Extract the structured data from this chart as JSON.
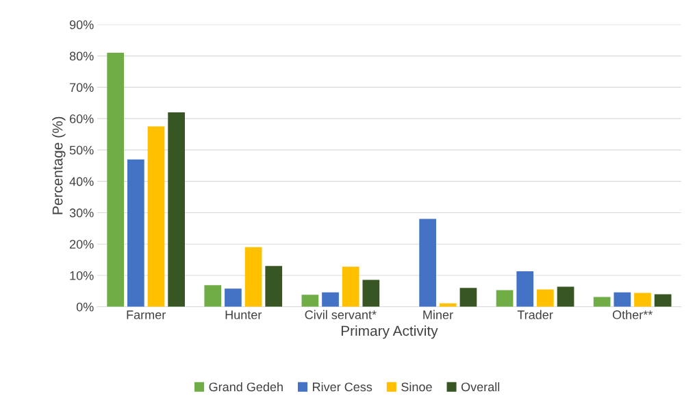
{
  "chart_data": {
    "type": "bar",
    "xlabel": "Primary Activity",
    "ylabel": "Percentage (%)",
    "categories": [
      "Farmer",
      "Hunter",
      "Civil servant*",
      "Miner",
      "Trader",
      "Other**"
    ],
    "series": [
      {
        "name": "Grand Gedeh",
        "color": "#70ad47",
        "values": [
          81,
          6.9,
          3.8,
          0,
          5.3,
          3.1
        ]
      },
      {
        "name": "River Cess",
        "color": "#4472c4",
        "values": [
          47,
          5.8,
          4.6,
          28,
          11.3,
          4.6
        ]
      },
      {
        "name": "Sinoe",
        "color": "#ffc000",
        "values": [
          57.5,
          19,
          12.8,
          1.1,
          5.5,
          4.4
        ]
      },
      {
        "name": "Overall",
        "color": "#375623",
        "values": [
          62,
          13,
          8.6,
          6,
          6.4,
          4
        ]
      }
    ],
    "ylim": [
      0,
      90
    ],
    "yticks": [
      {
        "value": 0,
        "label": "0%"
      },
      {
        "value": 10,
        "label": "10%"
      },
      {
        "value": 20,
        "label": "20%"
      },
      {
        "value": 30,
        "label": "30%"
      },
      {
        "value": 40,
        "label": "40%"
      },
      {
        "value": 50,
        "label": "50%"
      },
      {
        "value": 60,
        "label": "60%"
      },
      {
        "value": 70,
        "label": "70%"
      },
      {
        "value": 80,
        "label": "80%"
      },
      {
        "value": 90,
        "label": "90%"
      }
    ],
    "grid": "y",
    "legend": "bottom"
  }
}
